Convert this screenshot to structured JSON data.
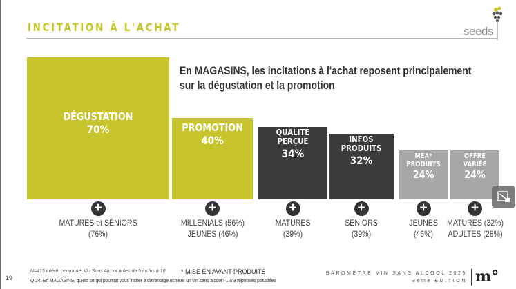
{
  "header": {
    "title": "INCITATION À L'ACHAT",
    "logo_text": "seeds"
  },
  "headline": {
    "line1": "En MAGASINS, les incitations à l'achat reposent principalement",
    "line2": "sur la dégustation et la promotion"
  },
  "colors": {
    "accent": "#c8c52c",
    "dark": "#3b3b3b",
    "light": "#a7a7a7"
  },
  "chart_data": {
    "type": "bar",
    "categories": [
      "DÉGUSTATION",
      "PROMOTION",
      "QUALITÉ PERÇUE",
      "INFOS PRODUITS",
      "MEA* PRODUITS",
      "OFFRE VARIÉE"
    ],
    "values": [
      70,
      40,
      34,
      32,
      24,
      24
    ],
    "value_labels": [
      "70%",
      "40%",
      "34%",
      "32%",
      "24%",
      "24%"
    ],
    "label_lines": [
      [
        "DÉGUSTATION"
      ],
      [
        "PROMOTION"
      ],
      [
        "QUALITÉ",
        "PERÇUE"
      ],
      [
        "INFOS",
        "PRODUITS"
      ],
      [
        "MEA*",
        "PRODUITS"
      ],
      [
        "OFFRE",
        "VARIÉE"
      ]
    ],
    "bar_colors": [
      "#c8c52c",
      "#c8c52c",
      "#3b3b3b",
      "#3b3b3b",
      "#a7a7a7",
      "#a7a7a7"
    ],
    "segments": [
      [
        "MATURES et SÉNIORS",
        "(76%)"
      ],
      [
        "MILLENIALS (56%)",
        "JEUNES (46%)"
      ],
      [
        "MATURES",
        "(39%)"
      ],
      [
        "SENIORS",
        "(39%)"
      ],
      [
        "JEUNES",
        "(46%)"
      ],
      [
        "MATURES (32%)",
        "ADULTES (28%)"
      ]
    ],
    "ylim": [
      0,
      70
    ]
  },
  "footer": {
    "page": "19",
    "sample": "N=415 intérêt personnel Vin Sans Alcool notes de 5 inclus à 10",
    "footnote": "* MISE EN AVANT PRODUITS",
    "question": "Q 24. En MAGASINS, qu'est ce qui pourrait vous inciter à davantage acheter un vin sans alcool? 1 à 3 réponses possibles",
    "baro_line1": "BAROMÈTRE VIN SANS ALCOOL 2025",
    "baro_line2": "3ème ÉDITION",
    "brand": "m°"
  },
  "plus_symbol": "+"
}
